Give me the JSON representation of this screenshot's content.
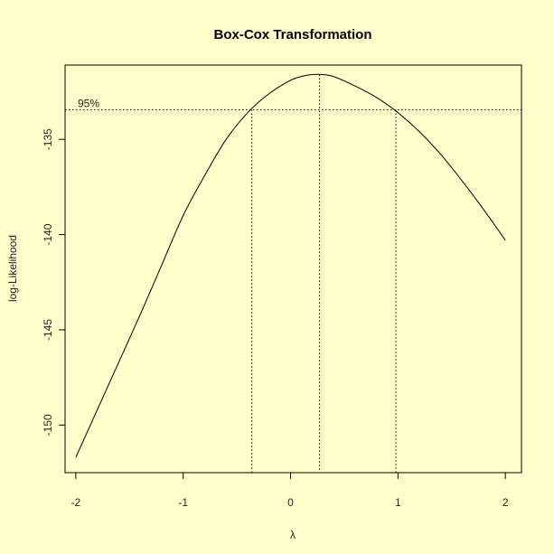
{
  "chart_data": {
    "type": "line",
    "title": "Box-Cox Transformation",
    "xlabel": "λ",
    "ylabel": "log-Likelihood",
    "xlim": [
      -2.1,
      2.15
    ],
    "ylim": [
      -152.5,
      -131.1
    ],
    "x_ticks": [
      -2,
      -1,
      0,
      1,
      2
    ],
    "x_tick_labels": [
      "-2",
      "-1",
      "0",
      "1",
      "2"
    ],
    "y_ticks": [
      -150,
      -145,
      -140,
      -135
    ],
    "y_tick_labels": [
      "-150",
      "-145",
      "-140",
      "-135"
    ],
    "series": [
      {
        "x": [
          -2.0,
          -1.8,
          -1.6,
          -1.4,
          -1.2,
          -1.0,
          -0.8,
          -0.6,
          -0.4,
          -0.2,
          0.0,
          0.1,
          0.2,
          0.3,
          0.4,
          0.6,
          0.8,
          1.0,
          1.2,
          1.4,
          1.6,
          1.8,
          2.0
        ],
        "y": [
          -151.7,
          -149.2,
          -146.7,
          -144.2,
          -141.6,
          -139.0,
          -136.9,
          -135.0,
          -133.6,
          -132.6,
          -131.9,
          -131.7,
          -131.6,
          -131.6,
          -131.7,
          -132.2,
          -132.8,
          -133.6,
          -134.6,
          -135.8,
          -137.2,
          -138.7,
          -140.3
        ]
      }
    ],
    "confidence": {
      "label": "95%",
      "level": -133.45,
      "lower": -0.36,
      "upper": 0.98,
      "lambda_max": 0.27
    },
    "grid": false,
    "colors": {
      "background": "#ffffcc",
      "line": "#000000"
    }
  }
}
